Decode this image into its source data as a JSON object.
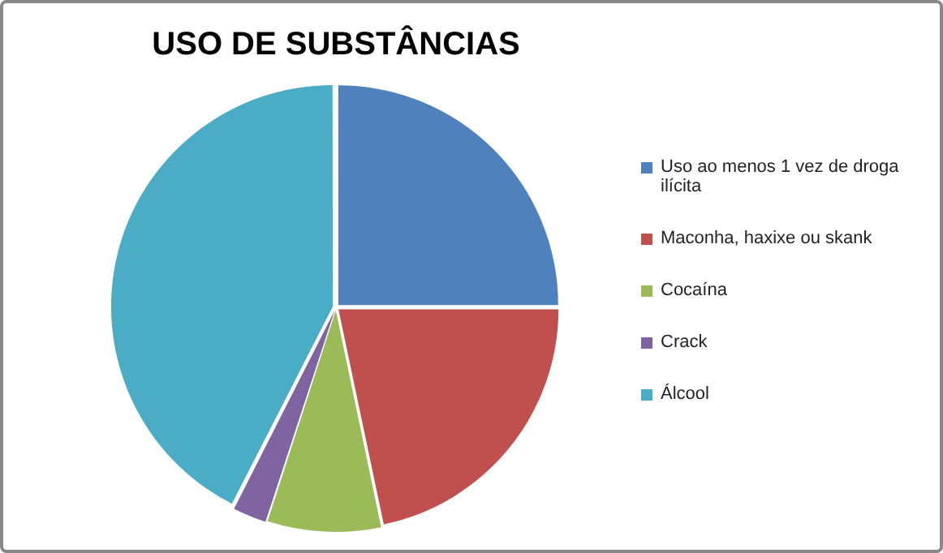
{
  "chart_data": {
    "type": "pie",
    "title": "USO DE SUBSTÂNCIAS",
    "categories": [
      "Uso ao menos 1 vez de droga ilícita",
      "Maconha, haxixe ou skank",
      "Cocaína",
      "Crack",
      "Álcool"
    ],
    "values": [
      25,
      21.7,
      8.3,
      2.5,
      42.5
    ],
    "colors": [
      "#4f81bd",
      "#c0504d",
      "#9bbb59",
      "#8064a2",
      "#4bacc6"
    ],
    "legend": "right"
  }
}
